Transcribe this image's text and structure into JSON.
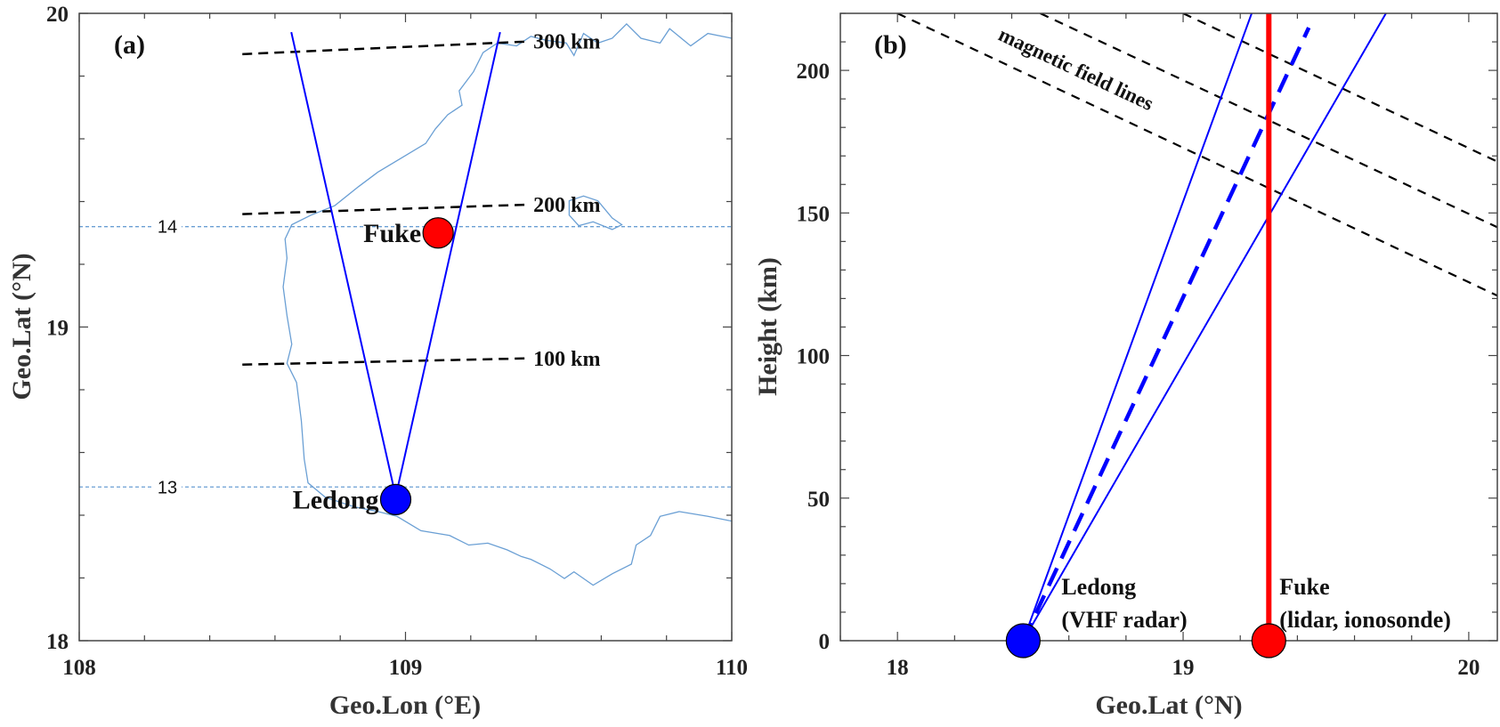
{
  "chart_data": [
    {
      "type": "map",
      "panel_label": "(a)",
      "xlabel": "Geo.Lon (°E)",
      "ylabel": "Geo.Lat (°N)",
      "xlim": [
        108,
        110
      ],
      "ylim": [
        18,
        20
      ],
      "xticks": [
        "108",
        "109",
        "110"
      ],
      "yticks": [
        "18",
        "19",
        "20"
      ],
      "coastline_color": "#6a9fd4",
      "stations": [
        {
          "name": "Ledong",
          "lon": 108.97,
          "lat": 18.45,
          "color": "#0000ff"
        },
        {
          "name": "Fuke",
          "lon": 109.1,
          "lat": 19.3,
          "color": "#ff0000"
        }
      ],
      "beam_edges": [
        {
          "from": [
            108.97,
            18.46
          ],
          "to": [
            108.65,
            19.94
          ]
        },
        {
          "from": [
            108.97,
            18.46
          ],
          "to": [
            109.29,
            19.94
          ]
        }
      ],
      "height_contours": [
        {
          "label": "300 km",
          "points": [
            [
              108.5,
              19.87
            ],
            [
              109.37,
              19.91
            ]
          ]
        },
        {
          "label": "200 km",
          "points": [
            [
              108.5,
              19.36
            ],
            [
              109.37,
              19.39
            ]
          ]
        },
        {
          "label": "100 km",
          "points": [
            [
              108.5,
              18.88
            ],
            [
              109.37,
              18.9
            ]
          ]
        }
      ],
      "magnetic_latitude_lines": [
        {
          "label": "14",
          "lat": 19.32
        },
        {
          "label": "13",
          "lat": 18.49
        }
      ]
    },
    {
      "type": "line",
      "panel_label": "(b)",
      "xlabel": "Geo.Lat (°N)",
      "ylabel": "Height (km)",
      "xlim": [
        17.8,
        20.1
      ],
      "ylim": [
        0,
        220
      ],
      "xticks": [
        "18",
        "19",
        "20"
      ],
      "yticks": [
        "0",
        "50",
        "100",
        "150",
        "200"
      ],
      "stations": [
        {
          "name": "Ledong",
          "note": "(VHF radar)",
          "lat": 18.44,
          "height": 0,
          "color": "#0000ff"
        },
        {
          "name": "Fuke",
          "note": "(lidar, ionosonde)",
          "lat": 19.3,
          "height": 0,
          "color": "#ff0000"
        }
      ],
      "radar_beam": {
        "edges": [
          {
            "from": [
              18.44,
              0
            ],
            "to": [
              19.24,
              220
            ]
          },
          {
            "from": [
              18.44,
              0
            ],
            "to": [
              19.71,
              220
            ]
          }
        ],
        "center": {
          "from": [
            18.44,
            0
          ],
          "to": [
            19.44,
            215
          ]
        },
        "color": "#0000ff"
      },
      "lidar_beam": {
        "lat": 19.3,
        "from": 0,
        "to": 220,
        "color": "#ff0000"
      },
      "magnetic_field_lines": {
        "label": "magnetic field lines",
        "lines": [
          {
            "from": [
              18.0,
              220
            ],
            "to": [
              20.1,
              121
            ]
          },
          {
            "from": [
              18.5,
              220
            ],
            "to": [
              20.1,
              145
            ]
          },
          {
            "from": [
              19.0,
              220
            ],
            "to": [
              20.1,
              168
            ]
          }
        ]
      }
    }
  ]
}
